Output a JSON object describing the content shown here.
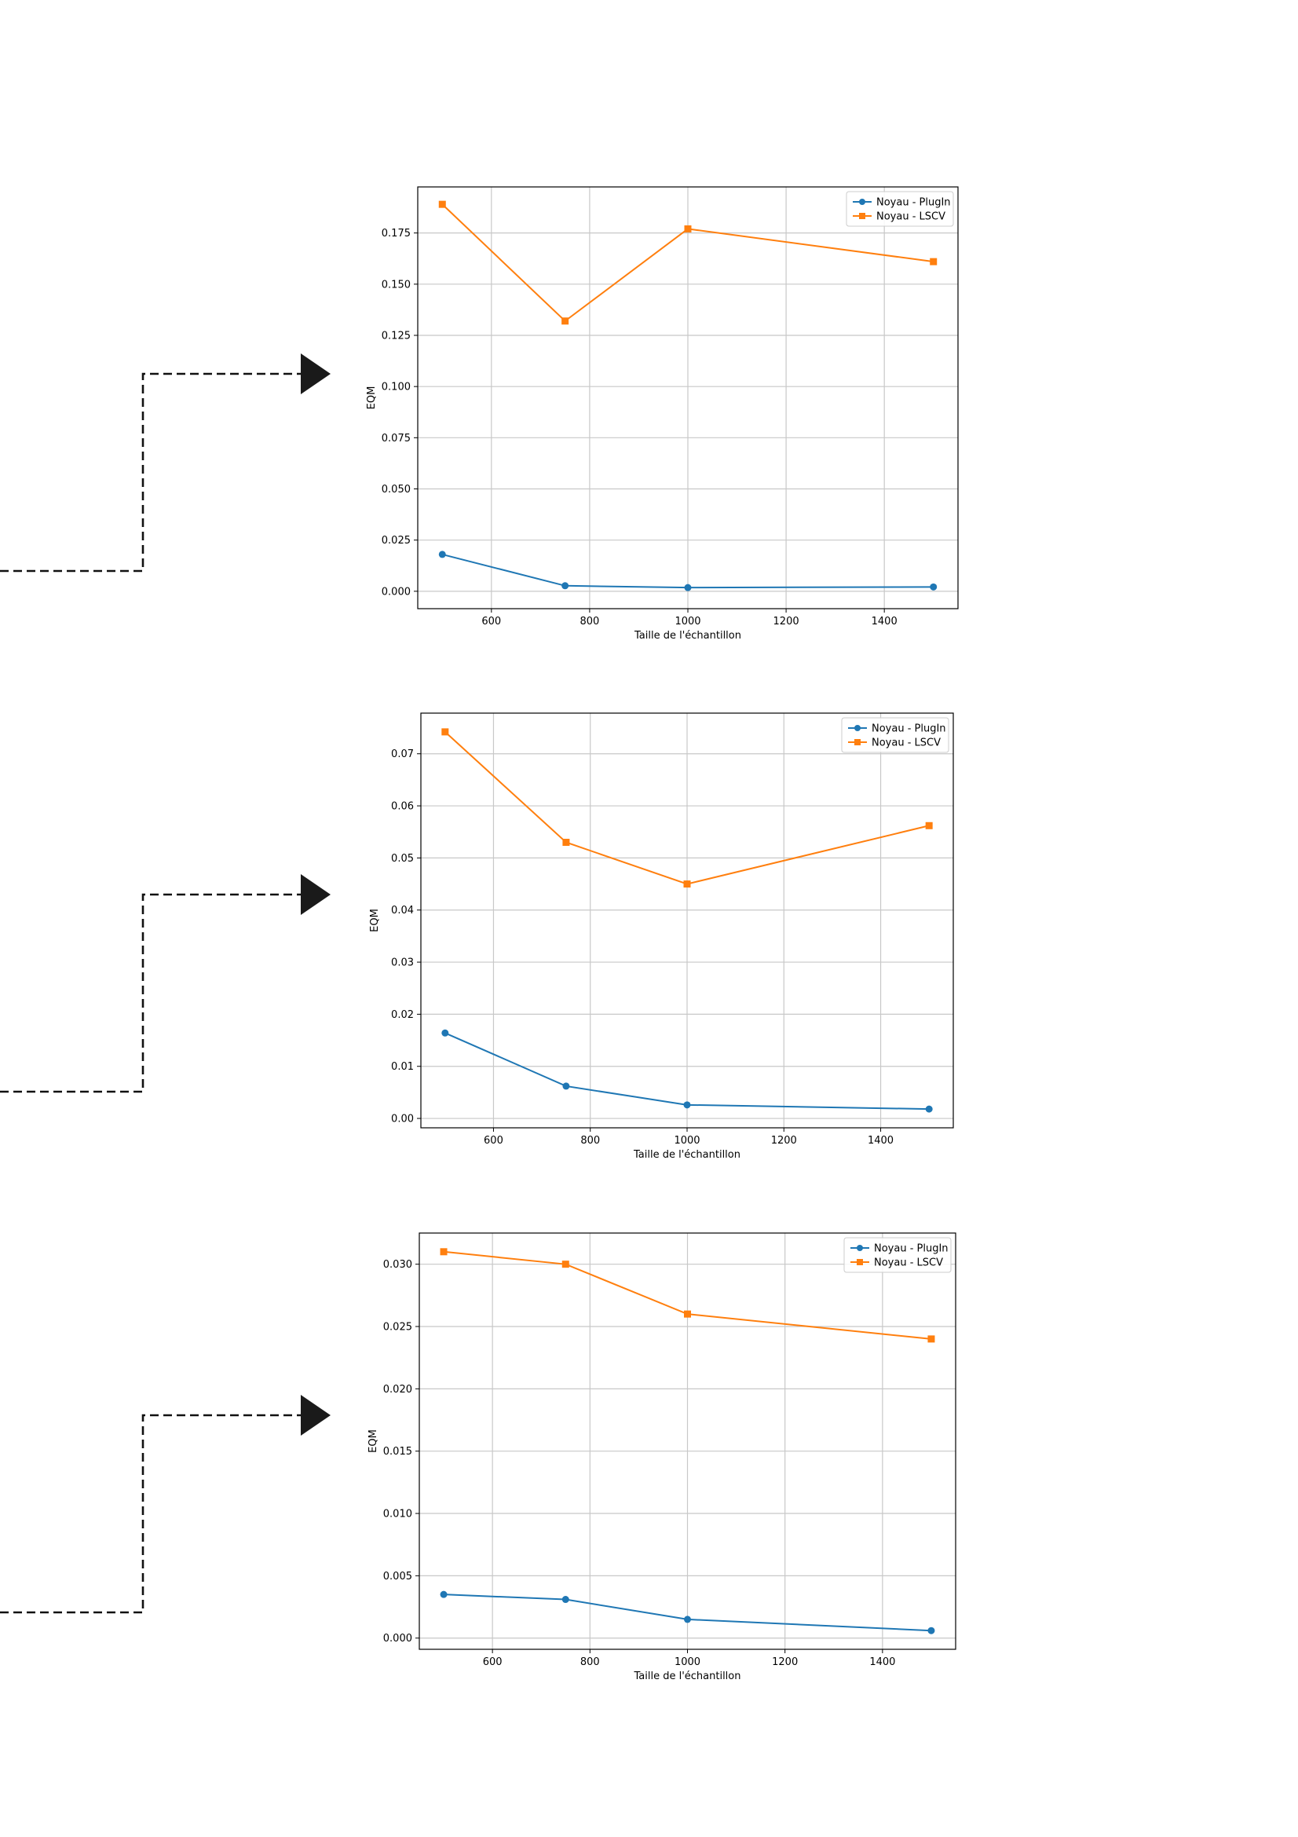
{
  "colors": {
    "series_1": "#1f77b4",
    "series_2": "#ff7f0e",
    "grid": "#c8c8c8",
    "connector": "#111111",
    "arrow_head": "#1a1a1a"
  },
  "chart_data": [
    {
      "type": "line",
      "xlabel": "Taille de l'échantillon",
      "ylabel": "EQM",
      "grid": true,
      "legend_position": "top-right",
      "x": [
        500,
        750,
        1000,
        1500
      ],
      "xlim": [
        450,
        1550
      ],
      "ylim": [
        -0.0085,
        0.1975
      ],
      "x_ticks": [
        600,
        800,
        1000,
        1200,
        1400
      ],
      "x_tick_labels": [
        "600",
        "800",
        "1000",
        "1200",
        "1400"
      ],
      "y_ticks": [
        0,
        0.025,
        0.05,
        0.075,
        0.1,
        0.125,
        0.15,
        0.175
      ],
      "y_tick_labels": [
        "0.000",
        "0.025",
        "0.050",
        "0.075",
        "0.100",
        "0.125",
        "0.150",
        "0.175"
      ],
      "series": [
        {
          "name": "Noyau - PlugIn",
          "marker": "circle",
          "color": "#1f77b4",
          "values": [
            0.018,
            0.0027,
            0.0018,
            0.0021
          ]
        },
        {
          "name": "Noyau - LSCV",
          "marker": "square",
          "color": "#ff7f0e",
          "values": [
            0.189,
            0.132,
            0.177,
            0.161
          ]
        }
      ]
    },
    {
      "type": "line",
      "xlabel": "Taille de l'échantillon",
      "ylabel": "EQM",
      "grid": true,
      "legend_position": "top-right",
      "x": [
        500,
        750,
        1000,
        1500
      ],
      "xlim": [
        450,
        1550
      ],
      "ylim": [
        -0.0018,
        0.0778
      ],
      "x_ticks": [
        600,
        800,
        1000,
        1200,
        1400
      ],
      "x_tick_labels": [
        "600",
        "800",
        "1000",
        "1200",
        "1400"
      ],
      "y_ticks": [
        0,
        0.01,
        0.02,
        0.03,
        0.04,
        0.05,
        0.06,
        0.07
      ],
      "y_tick_labels": [
        "0.00",
        "0.01",
        "0.02",
        "0.03",
        "0.04",
        "0.05",
        "0.06",
        "0.07"
      ],
      "series": [
        {
          "name": "Noyau - PlugIn",
          "marker": "circle",
          "color": "#1f77b4",
          "values": [
            0.0164,
            0.0062,
            0.0026,
            0.0018
          ]
        },
        {
          "name": "Noyau - LSCV",
          "marker": "square",
          "color": "#ff7f0e",
          "values": [
            0.0742,
            0.053,
            0.045,
            0.0562
          ]
        }
      ]
    },
    {
      "type": "line",
      "xlabel": "Taille de l'échantillon",
      "ylabel": "EQM",
      "grid": true,
      "legend_position": "top-right",
      "x": [
        500,
        750,
        1000,
        1500
      ],
      "xlim": [
        450,
        1550
      ],
      "ylim": [
        -0.0009,
        0.0325
      ],
      "x_ticks": [
        600,
        800,
        1000,
        1200,
        1400
      ],
      "x_tick_labels": [
        "600",
        "800",
        "1000",
        "1200",
        "1400"
      ],
      "y_ticks": [
        0,
        0.005,
        0.01,
        0.015,
        0.02,
        0.025,
        0.03
      ],
      "y_tick_labels": [
        "0.000",
        "0.005",
        "0.010",
        "0.015",
        "0.020",
        "0.025",
        "0.030"
      ],
      "series": [
        {
          "name": "Noyau - PlugIn",
          "marker": "circle",
          "color": "#1f77b4",
          "values": [
            0.0035,
            0.0031,
            0.0015,
            0.0006
          ]
        },
        {
          "name": "Noyau - LSCV",
          "marker": "square",
          "color": "#ff7f0e",
          "values": [
            0.031,
            0.03,
            0.026,
            0.024
          ]
        }
      ]
    }
  ]
}
